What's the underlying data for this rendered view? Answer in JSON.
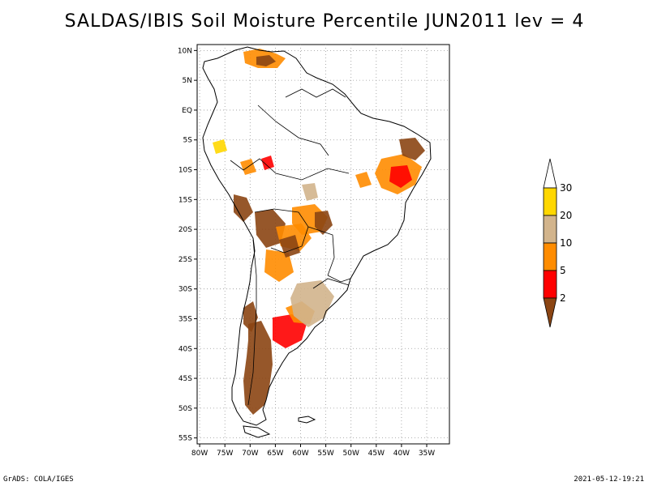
{
  "title": "SALDAS/IBIS Soil Moisture Percentile JUN2011 lev = 4",
  "footer": {
    "left": "GrADS: COLA/IGES",
    "right": "2021-05-12-19:21"
  },
  "map": {
    "lon_range": [
      -80.5,
      -30.5
    ],
    "lat_range": [
      -56,
      11
    ],
    "lon_ticks": [
      "80W",
      "75W",
      "70W",
      "65W",
      "60W",
      "55W",
      "50W",
      "45W",
      "40W",
      "35W"
    ],
    "lat_ticks": [
      "10N",
      "5N",
      "EQ",
      "5S",
      "10S",
      "15S",
      "20S",
      "25S",
      "30S",
      "35S",
      "40S",
      "45S",
      "50S",
      "55S"
    ],
    "grid": "dotted"
  },
  "legend": {
    "colorbar": "vertical, right of map",
    "classes": [
      {
        "label": "2",
        "color": "#8b4513"
      },
      {
        "label": "5",
        "color": "#ff0000"
      },
      {
        "label": "10",
        "color": "#ff8c00"
      },
      {
        "label": "20",
        "color": "#d2b48c"
      },
      {
        "label": "30",
        "color": "#ffd700"
      },
      {
        "label": "",
        "color": "#ffffff"
      }
    ],
    "tick_labels": [
      "2",
      "5",
      "10",
      "20",
      "30"
    ]
  },
  "colors": {
    "dry_extreme": "#8b4513",
    "very_dry": "#ff0000",
    "dry": "#ff8c00",
    "moderately_dry": "#d2b48c",
    "slightly_dry": "#ffd700"
  }
}
